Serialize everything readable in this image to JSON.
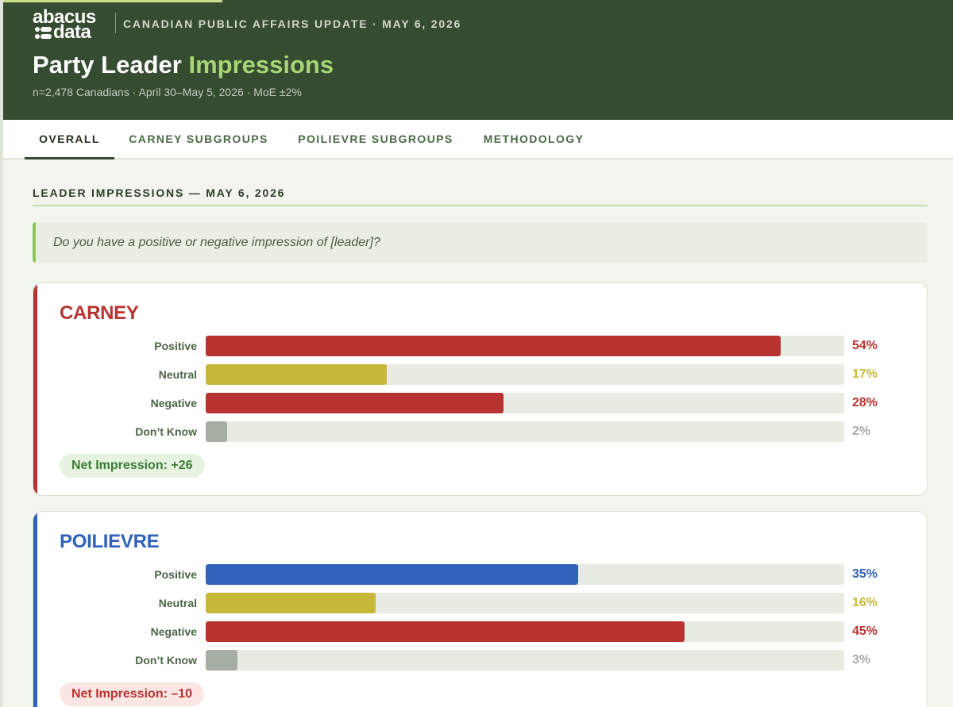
{
  "header": {
    "logo_line1": "abacus",
    "logo_line2": "data",
    "kicker": "CANADIAN PUBLIC AFFAIRS UPDATE · MAY 6, 2026",
    "title_main": "Party Leader",
    "title_accent": "Impressions",
    "subtitle": "n=2,478 Canadians · April 30–May 5, 2026 · MoE ±2%"
  },
  "tabs": [
    {
      "label": "OVERALL",
      "active": true
    },
    {
      "label": "CARNEY SUBGROUPS",
      "active": false
    },
    {
      "label": "POILIEVRE SUBGROUPS",
      "active": false
    },
    {
      "label": "METHODOLOGY",
      "active": false
    }
  ],
  "section": {
    "title": "LEADER IMPRESSIONS — MAY 6, 2026",
    "question": "Do you have a positive or negative impression of [leader]?"
  },
  "colors": {
    "positive_carney": "#b83330",
    "positive_poilievre": "#2f62b8",
    "neutral": "#c8b83a",
    "negative": "#b83330",
    "dont_know": "#a6ada2",
    "net_positive_bg": "#e6f3e1",
    "net_positive_text": "#3b7d34",
    "net_negative_bg": "#fbe6e4",
    "net_negative_text": "#b83330"
  },
  "chart_data": [
    {
      "type": "bar",
      "title": "CARNEY",
      "categories": [
        "Positive",
        "Neutral",
        "Negative",
        "Don’t Know"
      ],
      "values": [
        54,
        17,
        28,
        2
      ],
      "value_labels": [
        "54%",
        "17%",
        "28%",
        "2%"
      ],
      "xlim": [
        0,
        60
      ],
      "net_label": "Net Impression: +26"
    },
    {
      "type": "bar",
      "title": "POILIEVRE",
      "categories": [
        "Positive",
        "Neutral",
        "Negative",
        "Don’t Know"
      ],
      "values": [
        35,
        16,
        45,
        3
      ],
      "value_labels": [
        "35%",
        "16%",
        "45%",
        "3%"
      ],
      "xlim": [
        0,
        60
      ],
      "net_label": "Net Impression: –10"
    }
  ]
}
